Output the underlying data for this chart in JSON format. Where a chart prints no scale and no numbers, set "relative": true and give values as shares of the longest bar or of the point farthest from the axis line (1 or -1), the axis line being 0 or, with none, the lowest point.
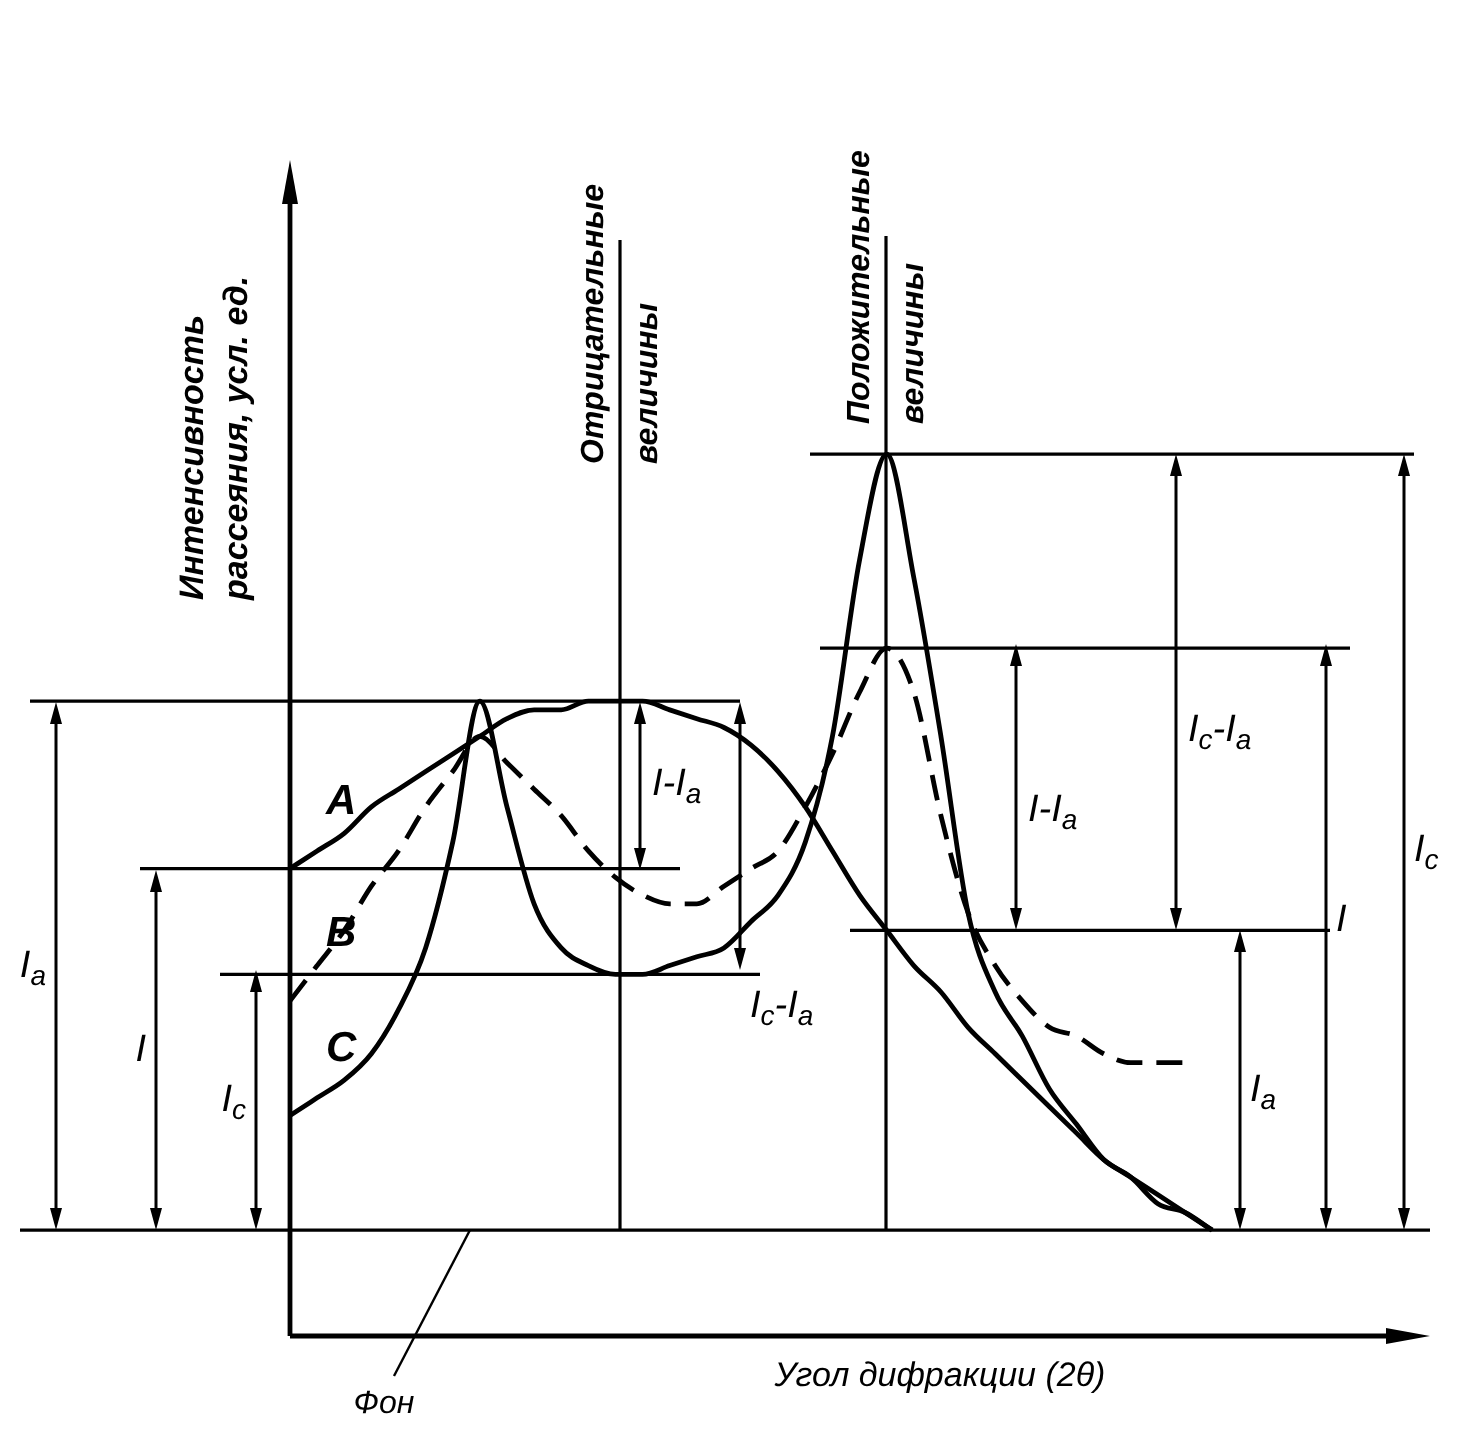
{
  "chart_data": {
    "type": "line",
    "relative": true,
    "xlabel": "Угол дифракции (2θ)",
    "ylabel": "Интенсивность рассеяния, усл. ед.",
    "tick_labels": false,
    "grid": false,
    "legend": false,
    "marker": "none",
    "line_style": "solid",
    "categories": [
      null,
      null,
      null,
      null,
      null,
      null,
      null,
      null,
      null,
      null,
      null,
      null,
      null,
      null,
      null,
      null,
      null,
      null,
      null,
      null,
      null,
      null,
      null,
      null,
      null,
      null,
      null,
      null,
      null,
      null,
      null,
      null,
      null,
      null,
      null,
      null,
      null,
      null,
      null,
      null,
      null,
      null
    ],
    "series": [
      {
        "name": "A",
        "color": "#000000",
        "values": [
          0.53,
          0.55,
          0.57,
          0.6,
          0.62,
          0.64,
          0.66,
          0.68,
          0.7,
          0.71,
          0.71,
          0.72,
          0.72,
          0.72,
          0.71,
          0.7,
          0.69,
          0.67,
          0.64,
          0.6,
          0.55,
          0.5,
          0.46,
          0.42,
          0.39,
          0.35,
          0.32,
          0.29,
          0.26,
          0.23,
          0.2,
          0.18,
          0.16,
          0.14,
          0.12,
          null,
          null,
          null,
          null,
          null,
          null,
          null
        ]
      },
      {
        "name": "B",
        "color": "#000000",
        "line_style": "dashed",
        "values": [
          0.38,
          0.42,
          0.46,
          0.51,
          0.55,
          0.6,
          0.64,
          0.68,
          0.65,
          0.62,
          0.59,
          0.55,
          0.52,
          0.5,
          0.49,
          0.49,
          0.51,
          0.53,
          0.55,
          0.6,
          0.66,
          0.73,
          0.78,
          0.73,
          0.59,
          0.48,
          0.42,
          0.38,
          0.35,
          0.34,
          0.32,
          0.31,
          0.31,
          0.31,
          null,
          null,
          null,
          null,
          null,
          null,
          null,
          null
        ]
      },
      {
        "name": "C",
        "color": "#000000",
        "values": [
          0.25,
          0.27,
          0.29,
          0.32,
          0.37,
          0.44,
          0.56,
          0.72,
          0.6,
          0.49,
          0.44,
          0.42,
          0.41,
          0.41,
          0.42,
          0.43,
          0.44,
          0.47,
          0.5,
          0.56,
          0.68,
          0.88,
          1,
          0.86,
          0.68,
          0.48,
          0.39,
          0.34,
          0.28,
          0.24,
          0.2,
          0.18,
          0.15,
          0.14,
          0.12,
          null,
          null,
          null,
          null,
          null,
          null,
          null
        ]
      }
    ],
    "ref_lines": [
      {
        "axis": "y",
        "value": 0.72,
        "color": "#000000"
      },
      {
        "axis": "y",
        "value": 0.53,
        "color": "#000000"
      },
      {
        "axis": "y",
        "value": 0.41,
        "color": "#000000"
      },
      {
        "axis": "y",
        "value": 1,
        "color": "#000000"
      },
      {
        "axis": "y",
        "value": 0.78,
        "color": "#000000"
      },
      {
        "axis": "y",
        "value": 0.46,
        "color": "#000000"
      },
      {
        "axis": "y",
        "value": 0.12,
        "color": "#000000"
      }
    ],
    "annotations": [
      "I$_{a}$",
      "I",
      "I$_{c}$",
      "I-I$_{a}$",
      "I$_{c}$-I$_{a}$",
      "I-I$_{a}$",
      "I$_{c}$-I$_{a}$",
      "I$_{a}$",
      "I",
      "I$_{c}$",
      "Фон",
      "Отрицательные величины",
      "Положительные величины"
    ]
  }
}
